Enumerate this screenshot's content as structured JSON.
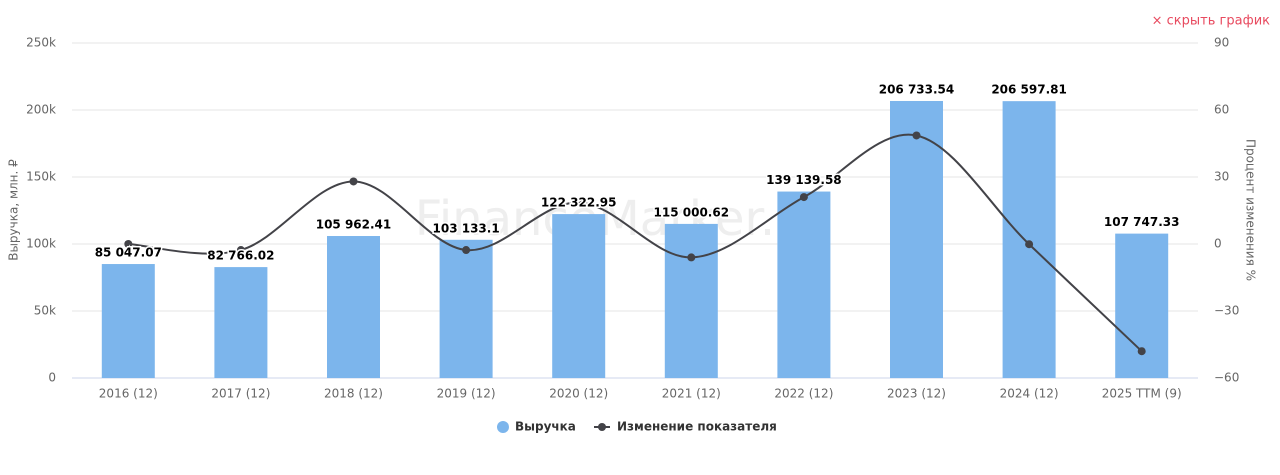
{
  "chart_data": {
    "type": "bar",
    "hide_button": "× скрыть график",
    "watermark": "FinanceMarker.ru",
    "y_label": "Выручка, млн. ₽",
    "y2_label": "Процент изменения %",
    "categories": [
      "2016 (12)",
      "2017 (12)",
      "2018 (12)",
      "2019 (12)",
      "2020 (12)",
      "2021 (12)",
      "2022 (12)",
      "2023 (12)",
      "2024 (12)",
      "2025 TTM (9)"
    ],
    "series": [
      {
        "name": "Выручка",
        "type": "bar",
        "color": "#7cb5ec",
        "values": [
          85047.07,
          82766.02,
          105962.41,
          103133.1,
          122322.95,
          115000.62,
          139139.58,
          206733.54,
          206597.81,
          107747.33
        ],
        "value_labels": [
          "85 047.07",
          "82 766.02",
          "105 962.41",
          "103 133.1",
          "122 322.95",
          "115 000.62",
          "139 139.58",
          "206 733.54",
          "206 597.81",
          "107 747.33"
        ]
      },
      {
        "name": "Изменение показателя",
        "type": "line",
        "axis": "y2",
        "color": "#434348",
        "values": [
          0,
          -2.7,
          28,
          -2.7,
          18.6,
          -6,
          21,
          48.6,
          -0.1,
          -48
        ]
      }
    ],
    "ylim": [
      0,
      250000
    ],
    "yticks": [
      0,
      {
        "value": 50000,
        "label": "50k"
      },
      {
        "value": 100000,
        "label": "100k"
      },
      {
        "value": 150000,
        "label": "150k"
      },
      {
        "value": 200000,
        "label": "200k"
      },
      {
        "value": 250000,
        "label": "250k"
      }
    ],
    "y2lim": [
      -60,
      90
    ],
    "y2ticks": [
      {
        "value": -60,
        "label": "−60"
      },
      {
        "value": -30,
        "label": "−30"
      },
      0,
      30,
      60,
      90
    ],
    "grid": true
  }
}
